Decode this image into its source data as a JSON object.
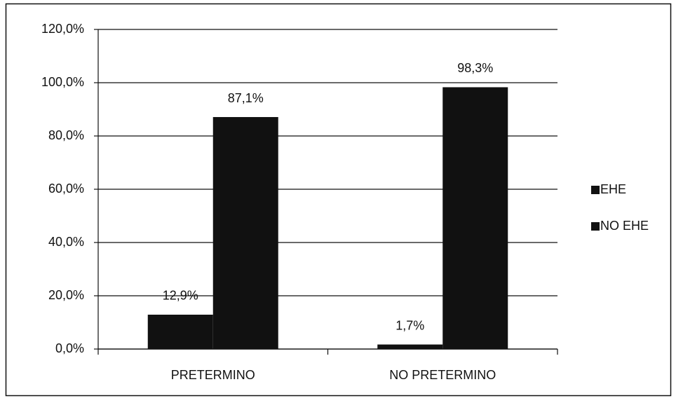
{
  "chart_data": {
    "type": "bar",
    "categories": [
      "PRETERMINO",
      "NO PRETERMINO"
    ],
    "series": [
      {
        "name": "EHE",
        "color": "#111111",
        "values": [
          12.9,
          1.7
        ],
        "value_labels": [
          "12,9%",
          "1,7%"
        ]
      },
      {
        "name": "NO EHE",
        "color": "#111111",
        "values": [
          87.1,
          98.3
        ],
        "value_labels": [
          "87,1%",
          "98,3%"
        ]
      }
    ],
    "ylim": [
      0,
      120
    ],
    "yticks": [
      {
        "value": 0,
        "label": "0,0%"
      },
      {
        "value": 20,
        "label": "20,0%"
      },
      {
        "value": 40,
        "label": "40,0%"
      },
      {
        "value": 60,
        "label": "60,0%"
      },
      {
        "value": 80,
        "label": "80,0%"
      },
      {
        "value": 100,
        "label": "100,0%"
      },
      {
        "value": 120,
        "label": "120,0%"
      }
    ],
    "grid": true,
    "legend": "right"
  }
}
